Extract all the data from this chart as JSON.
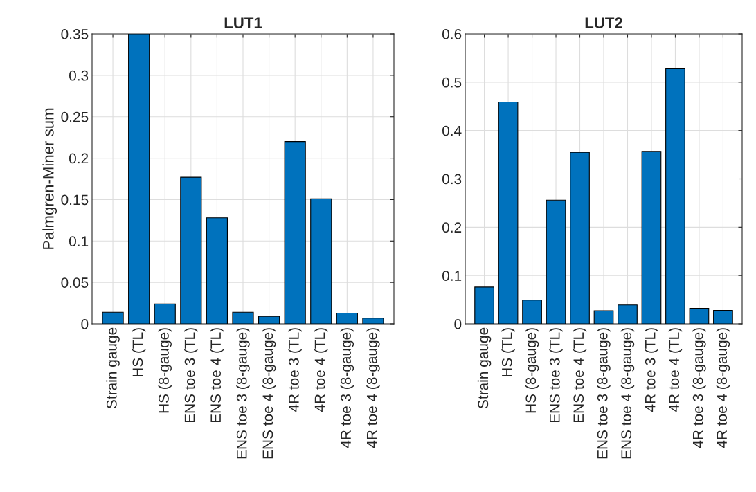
{
  "chart_data": [
    {
      "type": "bar",
      "title": "LUT1",
      "ylabel": "Palmgren-Miner sum",
      "categories": [
        "Strain gauge",
        "HS (TL)",
        "HS (8-gauge)",
        "ENS toe 3 (TL)",
        "ENS toe 4 (TL)",
        "ENS toe 3 (8-gauge)",
        "ENS toe 4 (8-gauge)",
        "4R toe 3 (TL)",
        "4R toe 4 (TL)",
        "4R toe 3 (8-gauge)",
        "4R toe 4 (8-gauge)"
      ],
      "values": [
        0.014,
        0.35,
        0.024,
        0.177,
        0.128,
        0.014,
        0.009,
        0.22,
        0.151,
        0.013,
        0.007
      ],
      "color": "#0072bd",
      "ylim": [
        0,
        0.35
      ],
      "yticks": [
        0,
        0.05,
        0.1,
        0.15,
        0.2,
        0.25,
        0.3,
        0.35
      ],
      "grid": true
    },
    {
      "type": "bar",
      "title": "LUT2",
      "categories": [
        "Strain gauge",
        "HS (TL)",
        "HS (8-gauge)",
        "ENS toe 3 (TL)",
        "ENS toe 4 (TL)",
        "ENS toe 3 (8-gauge)",
        "ENS toe 4 (8-gauge)",
        "4R toe 3 (TL)",
        "4R toe 4 (TL)",
        "4R toe 3 (8-gauge)",
        "4R toe 4 (8-gauge)"
      ],
      "values": [
        0.076,
        0.459,
        0.049,
        0.256,
        0.355,
        0.027,
        0.039,
        0.357,
        0.529,
        0.032,
        0.028
      ],
      "color": "#0072bd",
      "ylim": [
        0,
        0.6
      ],
      "yticks": [
        0,
        0.1,
        0.2,
        0.3,
        0.4,
        0.5,
        0.6
      ],
      "grid": true
    }
  ]
}
